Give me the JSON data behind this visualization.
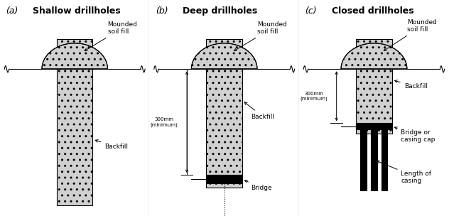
{
  "bg_color": "#ffffff",
  "fill_color": "#c8c8c8",
  "bridge_color": "#1a1a1a",
  "line_color": "#000000",
  "text_color": "#000000",
  "panels": [
    "(a)",
    "(b)",
    "(c)"
  ],
  "titles": [
    "Shallow drillholes",
    "Deep drillholes",
    "Closed drillholes"
  ],
  "title_fontsize": 9,
  "label_fontsize": 6,
  "dim_fontsize": 5,
  "annotation_fontsize": 6.5
}
